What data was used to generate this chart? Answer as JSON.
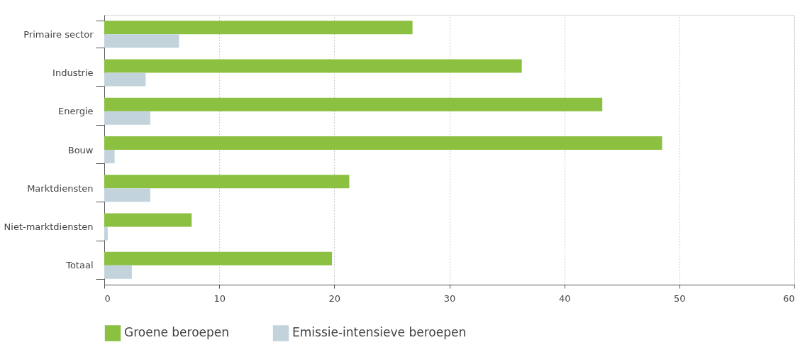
{
  "chart_data": {
    "type": "bar",
    "orientation": "horizontal",
    "categories": [
      "Primaire sector",
      "Industrie",
      "Energie",
      "Bouw",
      "Marktdiensten",
      "Niet-marktdiensten",
      "Totaal"
    ],
    "series": [
      {
        "name": "Groene beroepen",
        "color": "#8bc040",
        "values": [
          26.8,
          36.3,
          43.3,
          48.5,
          21.3,
          7.6,
          19.8
        ]
      },
      {
        "name": "Emissie-intensieve beroepen",
        "color": "#c3d3dc",
        "values": [
          6.5,
          3.6,
          4.0,
          0.9,
          4.0,
          0.3,
          2.4
        ]
      }
    ],
    "xlim": [
      0,
      60
    ],
    "xticks": [
      0,
      10,
      20,
      30,
      40,
      50,
      60
    ],
    "grid": "x",
    "legend": "bottom"
  }
}
